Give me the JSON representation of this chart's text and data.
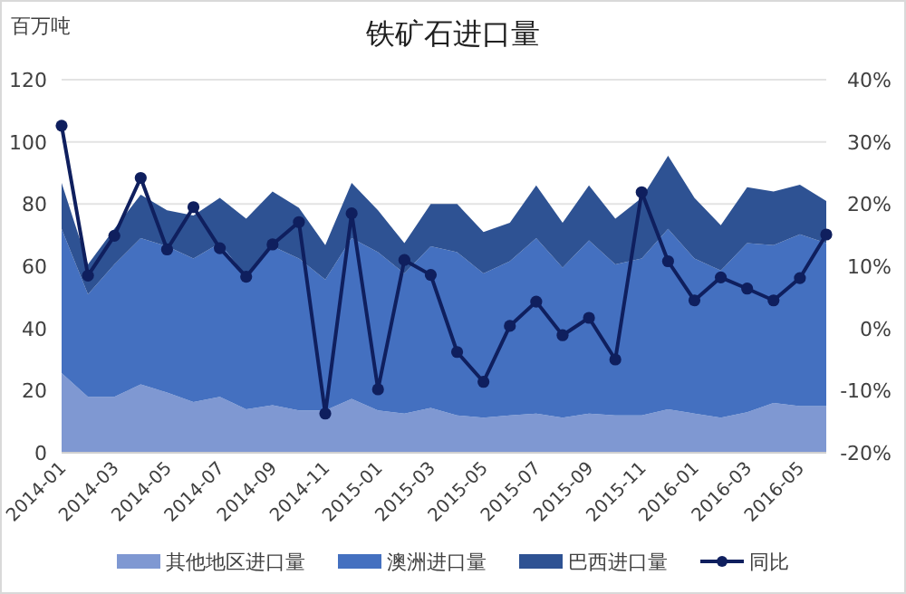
{
  "chart_data": {
    "type": "area",
    "title": "铁矿石进口量",
    "ylabel": "百万吨",
    "stacked": true,
    "grid": "y",
    "legend": "bottom",
    "categories": [
      "2014-01",
      null,
      "2014-03",
      null,
      "2014-05",
      null,
      "2014-07",
      null,
      "2014-09",
      null,
      "2014-11",
      null,
      "2015-01",
      null,
      "2015-03",
      null,
      "2015-05",
      null,
      "2015-07",
      null,
      "2015-09",
      null,
      "2015-11",
      null,
      "2016-01",
      null,
      "2016-03",
      null,
      "2016-05",
      null
    ],
    "ylim": [
      0,
      120
    ],
    "yticks": [
      0,
      20,
      40,
      60,
      80,
      100,
      120
    ],
    "y2lim": [
      -20,
      40
    ],
    "y2ticks": [
      {
        "value": -20,
        "label": "-20%"
      },
      {
        "value": -10,
        "label": "-10%"
      },
      {
        "value": 0,
        "label": "0%"
      },
      {
        "value": 10,
        "label": "10%"
      },
      {
        "value": 20,
        "label": "20%"
      },
      {
        "value": 30,
        "label": "30%"
      },
      {
        "value": 40,
        "label": "40%"
      }
    ],
    "series": [
      {
        "name": "其他地区进口量",
        "color": "#7f98d2",
        "values": [
          25.6,
          18,
          18,
          22,
          19.4,
          16.3,
          18,
          14,
          15.3,
          13.6,
          13.6,
          17.3,
          13.6,
          12.6,
          14.4,
          12,
          11.3,
          12,
          12.6,
          11.3,
          12.6,
          12,
          12,
          14,
          12.6,
          11.3,
          13,
          16,
          15,
          15
        ]
      },
      {
        "name": "澳洲进口量",
        "color": "#4470c0",
        "values": [
          46.4,
          33,
          42.6,
          47,
          47,
          46.2,
          49.4,
          42.7,
          51.1,
          48.9,
          42.1,
          51.7,
          50.9,
          45.1,
          52,
          52.5,
          46.4,
          49.6,
          56.4,
          48.3,
          55.7,
          48.6,
          50.5,
          58,
          49.9,
          47.3,
          54.4,
          50.8,
          55.3,
          52.4
        ]
      },
      {
        "name": "巴西进口量",
        "color": "#2e5293",
        "values": [
          14.8,
          9.6,
          11.4,
          14,
          11.6,
          13.8,
          14.6,
          18.6,
          17.6,
          16.3,
          11.1,
          17.8,
          13.5,
          9.7,
          13.6,
          15.5,
          13.3,
          12.4,
          17,
          14.4,
          17.7,
          14.7,
          19.5,
          23.5,
          19.5,
          14.6,
          18,
          17.2,
          15.9,
          13.6
        ]
      },
      {
        "name": "同比",
        "type": "line",
        "axis": "y2",
        "marker": "circle",
        "color": "#0f1f5e",
        "values": [
          32.6,
          8.5,
          14.9,
          24.2,
          12.7,
          19.5,
          12.9,
          8.3,
          13.5,
          17.1,
          -13.7,
          18.5,
          -9.8,
          11,
          8.6,
          -3.8,
          -8.6,
          0.4,
          4.3,
          -1.1,
          1.7,
          -5,
          21.9,
          10.8,
          4.5,
          8.2,
          6.4,
          4.5,
          8.1,
          15.1
        ]
      }
    ]
  }
}
